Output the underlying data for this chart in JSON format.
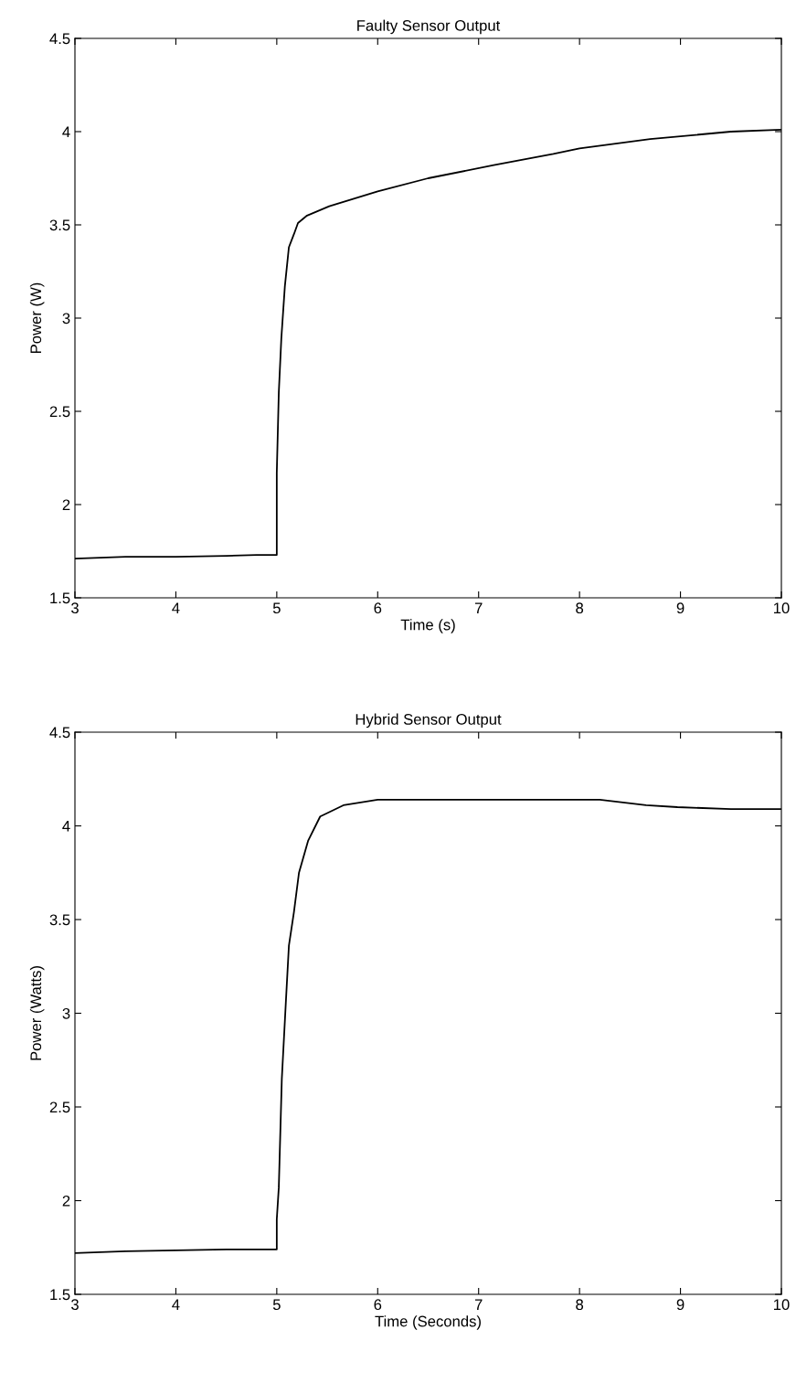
{
  "chart_data": [
    {
      "type": "line",
      "title": "Faulty Sensor Output",
      "xlabel": "Time (s)",
      "ylabel": "Power (W)",
      "xlim": [
        3,
        10
      ],
      "ylim": [
        1.5,
        4.5
      ],
      "xticks": [
        3,
        4,
        5,
        6,
        7,
        8,
        9,
        10
      ],
      "yticks": [
        1.5,
        2,
        2.5,
        3,
        3.5,
        4,
        4.5
      ],
      "grid": false,
      "legend": false,
      "series": [
        {
          "color": "#000000",
          "x": [
            3,
            3.5,
            4,
            4.5,
            4.8,
            5.0,
            5.0,
            5.02,
            5.045,
            5.08,
            5.12,
            5.17,
            5.21,
            5.3,
            5.52,
            6.0,
            6.5,
            7.15,
            7.74,
            8.0,
            8.7,
            9.5,
            10
          ],
          "values": [
            1.71,
            1.72,
            1.72,
            1.725,
            1.73,
            1.73,
            2.17,
            2.6,
            2.89,
            3.17,
            3.38,
            3.45,
            3.51,
            3.55,
            3.6,
            3.68,
            3.75,
            3.82,
            3.88,
            3.91,
            3.96,
            4.0,
            4.01
          ]
        }
      ]
    },
    {
      "type": "line",
      "title": "Hybrid Sensor Output",
      "xlabel": "Time (Seconds)",
      "ylabel": "Power (Watts)",
      "xlim": [
        3,
        10
      ],
      "ylim": [
        1.5,
        4.5
      ],
      "xticks": [
        3,
        4,
        5,
        6,
        7,
        8,
        9,
        10
      ],
      "yticks": [
        1.5,
        2,
        2.5,
        3,
        3.5,
        4,
        4.5
      ],
      "grid": false,
      "legend": false,
      "series": [
        {
          "color": "#000000",
          "x": [
            3,
            3.5,
            4,
            4.5,
            5.0,
            5.0,
            5.02,
            5.05,
            5.09,
            5.12,
            5.17,
            5.22,
            5.31,
            5.43,
            5.66,
            6.0,
            7.0,
            8.2,
            8.66,
            8.97,
            9.5,
            10
          ],
          "values": [
            1.72,
            1.73,
            1.735,
            1.74,
            1.74,
            1.9,
            2.07,
            2.65,
            3.06,
            3.36,
            3.54,
            3.75,
            3.92,
            4.05,
            4.11,
            4.14,
            4.14,
            4.14,
            4.11,
            4.1,
            4.09,
            4.09
          ]
        }
      ]
    }
  ]
}
